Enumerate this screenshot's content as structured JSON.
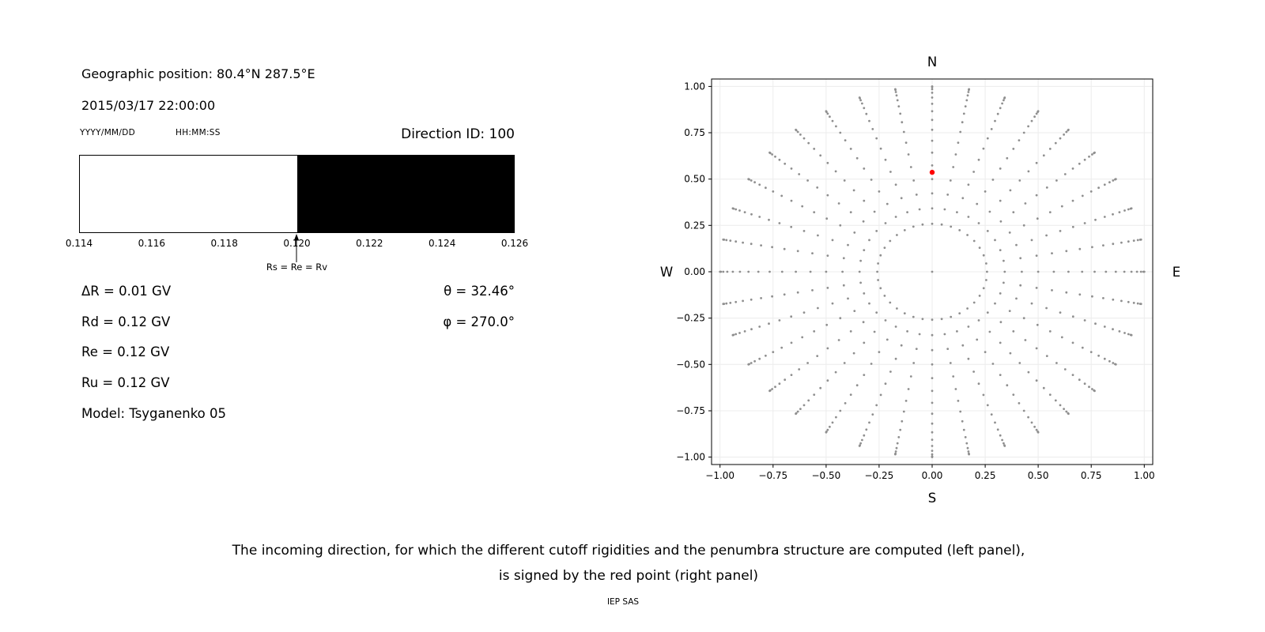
{
  "header": {
    "geographic_position": "Geographic position: 80.4°N 287.5°E",
    "datetime": "2015/03/17 22:00:00",
    "date_format_label": "YYYY/MM/DD",
    "time_format_label": "HH:MM:SS",
    "direction_id": "Direction ID: 100"
  },
  "info": {
    "lines": [
      "ΔR = 0.01 GV",
      "Rd = 0.12 GV",
      "Re = 0.12 GV",
      "Ru = 0.12 GV",
      "Model: Tsyganenko 05"
    ],
    "theta": "θ = 32.46°",
    "phi": "φ = 270.0°"
  },
  "caption": {
    "line1": "The incoming direction, for which the different cutoff rigidities and the penumbra structure are computed (left panel),",
    "line2": "is signed by the red point (right panel)",
    "credit": "IEP SAS"
  },
  "chart_data": [
    {
      "type": "area",
      "name": "penumbra-structure",
      "xlim": [
        0.114,
        0.126
      ],
      "xticks": [
        "0.114",
        "0.116",
        "0.118",
        "0.120",
        "0.122",
        "0.124",
        "0.126"
      ],
      "regions": [
        {
          "from": 0.114,
          "to": 0.12,
          "color": "#ffffff"
        },
        {
          "from": 0.12,
          "to": 0.126,
          "color": "#000000"
        }
      ],
      "annotation": {
        "x": 0.12,
        "label": "Rs = Re = Rv"
      }
    },
    {
      "type": "scatter",
      "name": "incoming-direction-map",
      "xlim": [
        -1.04,
        1.04
      ],
      "ylim": [
        -1.04,
        1.04
      ],
      "tick_values": [
        -1.0,
        -0.75,
        -0.5,
        -0.25,
        0.0,
        0.25,
        0.5,
        0.75,
        1.0
      ],
      "xticks": [
        "−1.00",
        "−0.75",
        "−0.50",
        "−0.25",
        "0.00",
        "0.25",
        "0.50",
        "0.75",
        "1.00"
      ],
      "yticks": [
        "−1.00",
        "−0.75",
        "−0.50",
        "−0.25",
        "0.00",
        "0.25",
        "0.50",
        "0.75",
        "1.00"
      ],
      "compass_labels": {
        "top": "N",
        "bottom": "S",
        "left": "W",
        "right": "E"
      },
      "grid": true,
      "grid_color": "#ececec",
      "dot_color": "#8f8f8f",
      "points_pattern": {
        "kind": "radial-direction-grid",
        "azimuth_deg_start": 0,
        "azimuth_deg_step": 10,
        "azimuth_count": 36,
        "zenith_deg_min": 15,
        "zenith_deg_max": 90,
        "zenith_deg_step": 5,
        "radius_mapping": "sin(zenith)",
        "center_point": [
          0,
          0
        ]
      },
      "highlight_point": {
        "x": 0.0,
        "y": 0.5367,
        "color": "#ff0000"
      }
    }
  ]
}
